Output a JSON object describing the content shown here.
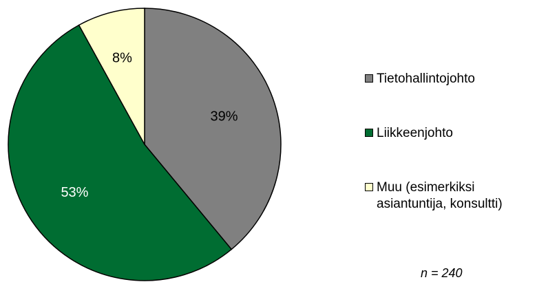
{
  "chart_data": {
    "type": "pie",
    "categories": [
      "Tietohallintojohto",
      "Liikkeenjohto",
      "Muu (esimerkiksi\nasiantuntija, konsultti)"
    ],
    "values": [
      39,
      53,
      8
    ],
    "labels": [
      "39%",
      "53%",
      "8%"
    ],
    "colors": [
      "#808080",
      "#006d32",
      "#ffffcc"
    ],
    "label_colors": [
      "#000000",
      "#ffffff",
      "#000000"
    ],
    "legend_position": "right",
    "note": "n = 240"
  }
}
